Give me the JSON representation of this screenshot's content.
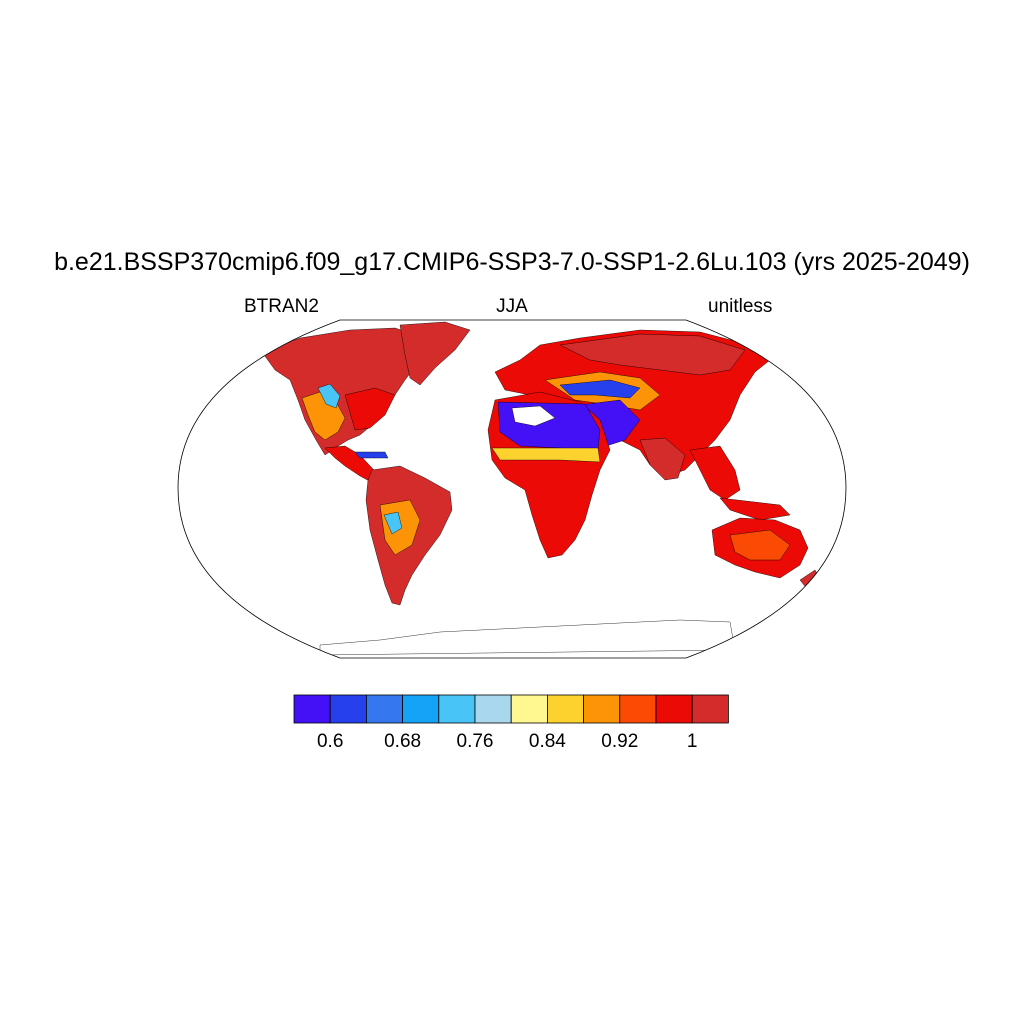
{
  "title": "b.e21.BSSP370cmip6.f09_g17.CMIP6-SSP3-7.0-SSP1-2.6Lu.103 (yrs 2025-2049)",
  "left_label": "BTRAN2",
  "center_label": "JJA",
  "right_label": "unitless",
  "colorbar": {
    "colors": [
      "#4410f5",
      "#2740ee",
      "#3577ee",
      "#14a3f7",
      "#48c4f6",
      "#a9d8ee",
      "#fff78f",
      "#fdd22f",
      "#fd9407",
      "#fb4a03",
      "#ec0a06",
      "#d42b2b"
    ],
    "tick_labels": [
      "0.6",
      "0.68",
      "0.76",
      "0.84",
      "0.92",
      "1"
    ],
    "tick_after_box": [
      1,
      3,
      5,
      7,
      9,
      11
    ]
  },
  "map_colors": {
    "land_wet": "#d42b2b",
    "land_moist": "#ec0a06",
    "land_med": "#fb4a03",
    "land_dry1": "#fd9407",
    "land_dry2": "#fdd22f",
    "land_dry3": "#48c4f6",
    "land_dry4": "#2740ee",
    "land_dry5": "#4410f5",
    "missing": "#ffffff",
    "outline": "#000000"
  }
}
